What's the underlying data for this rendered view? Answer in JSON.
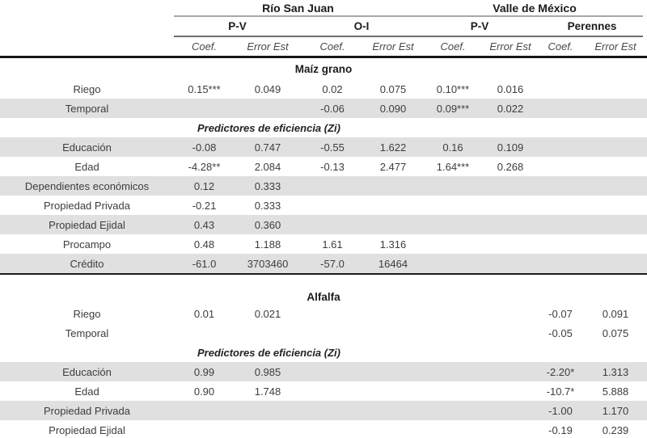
{
  "style": {
    "shaded_row_color": "#e0e0e0",
    "text_color": "#3d3d3d",
    "rule_color": "#161616"
  },
  "header": {
    "groups": [
      {
        "label": "Río San Juan"
      },
      {
        "label": "Valle de México"
      }
    ],
    "subgroups": [
      {
        "label": "P-V"
      },
      {
        "label": "O-I"
      },
      {
        "label": "P-V"
      },
      {
        "label": "Perennes"
      }
    ],
    "columns": [
      "Coef.",
      "Error Est",
      "Coef.",
      "Error Est",
      "Coef.",
      "Error Est",
      "Coef.",
      "Error Est"
    ]
  },
  "sections": [
    {
      "title": "Maíz grano",
      "rows": [
        {
          "label": "Riego",
          "shaded": false,
          "values": [
            "0.15***",
            "0.049",
            "0.02",
            "0.075",
            "0.10***",
            "0.016",
            "",
            ""
          ]
        },
        {
          "label": "Temporal",
          "shaded": true,
          "values": [
            "",
            "",
            "-0.06",
            "0.090",
            "0.09***",
            "0.022",
            "",
            ""
          ]
        },
        {
          "type": "subheader",
          "label": "Predictores de eficiencia (Zi)",
          "shaded": false
        },
        {
          "label": "Educación",
          "shaded": true,
          "values": [
            "-0.08",
            "0.747",
            "-0.55",
            "1.622",
            "0.16",
            "0.109",
            "",
            ""
          ]
        },
        {
          "label": "Edad",
          "shaded": false,
          "values": [
            "-4.28**",
            "2.084",
            "-0.13",
            "2.477",
            "1.64***",
            "0.268",
            "",
            ""
          ]
        },
        {
          "label": "Dependientes económicos",
          "shaded": true,
          "values": [
            "0.12",
            "0.333",
            "",
            "",
            "",
            "",
            "",
            ""
          ]
        },
        {
          "label": "Propiedad Privada",
          "shaded": false,
          "values": [
            "-0.21",
            "0.333",
            "",
            "",
            "",
            "",
            "",
            ""
          ]
        },
        {
          "label": "Propiedad Ejidal",
          "shaded": true,
          "values": [
            "0.43",
            "0.360",
            "",
            "",
            "",
            "",
            "",
            ""
          ]
        },
        {
          "label": "Procampo",
          "shaded": false,
          "values": [
            "0.48",
            "1.188",
            "1.61",
            "1.316",
            "",
            "",
            "",
            ""
          ]
        },
        {
          "label": "Crédito",
          "shaded": true,
          "values": [
            "-61.0",
            "3703460",
            "-57.0",
            "16464",
            "",
            "",
            "",
            ""
          ]
        }
      ]
    },
    {
      "title": "Alfalfa",
      "rows": [
        {
          "label": "Riego",
          "shaded": false,
          "values": [
            "0.01",
            "0.021",
            "",
            "",
            "",
            "",
            "-0.07",
            "0.091"
          ]
        },
        {
          "label": "Temporal",
          "shaded": false,
          "values": [
            "",
            "",
            "",
            "",
            "",
            "",
            "-0.05",
            "0.075"
          ]
        },
        {
          "type": "subheader",
          "label": "Predictores de eficiencia (Zi)",
          "shaded": false
        },
        {
          "label": "Educación",
          "shaded": true,
          "values": [
            "0.99",
            "0.985",
            "",
            "",
            "",
            "",
            "-2.20*",
            "1.313"
          ]
        },
        {
          "label": "Edad",
          "shaded": false,
          "values": [
            "0.90",
            "1.748",
            "",
            "",
            "",
            "",
            "-10.7*",
            "5.888"
          ]
        },
        {
          "label": "Propiedad Privada",
          "shaded": true,
          "values": [
            "",
            "",
            "",
            "",
            "",
            "",
            "-1.00",
            "1.170"
          ]
        },
        {
          "label": "Propiedad Ejidal",
          "shaded": false,
          "values": [
            "",
            "",
            "",
            "",
            "",
            "",
            "-0.19",
            "0.239"
          ]
        }
      ]
    }
  ]
}
